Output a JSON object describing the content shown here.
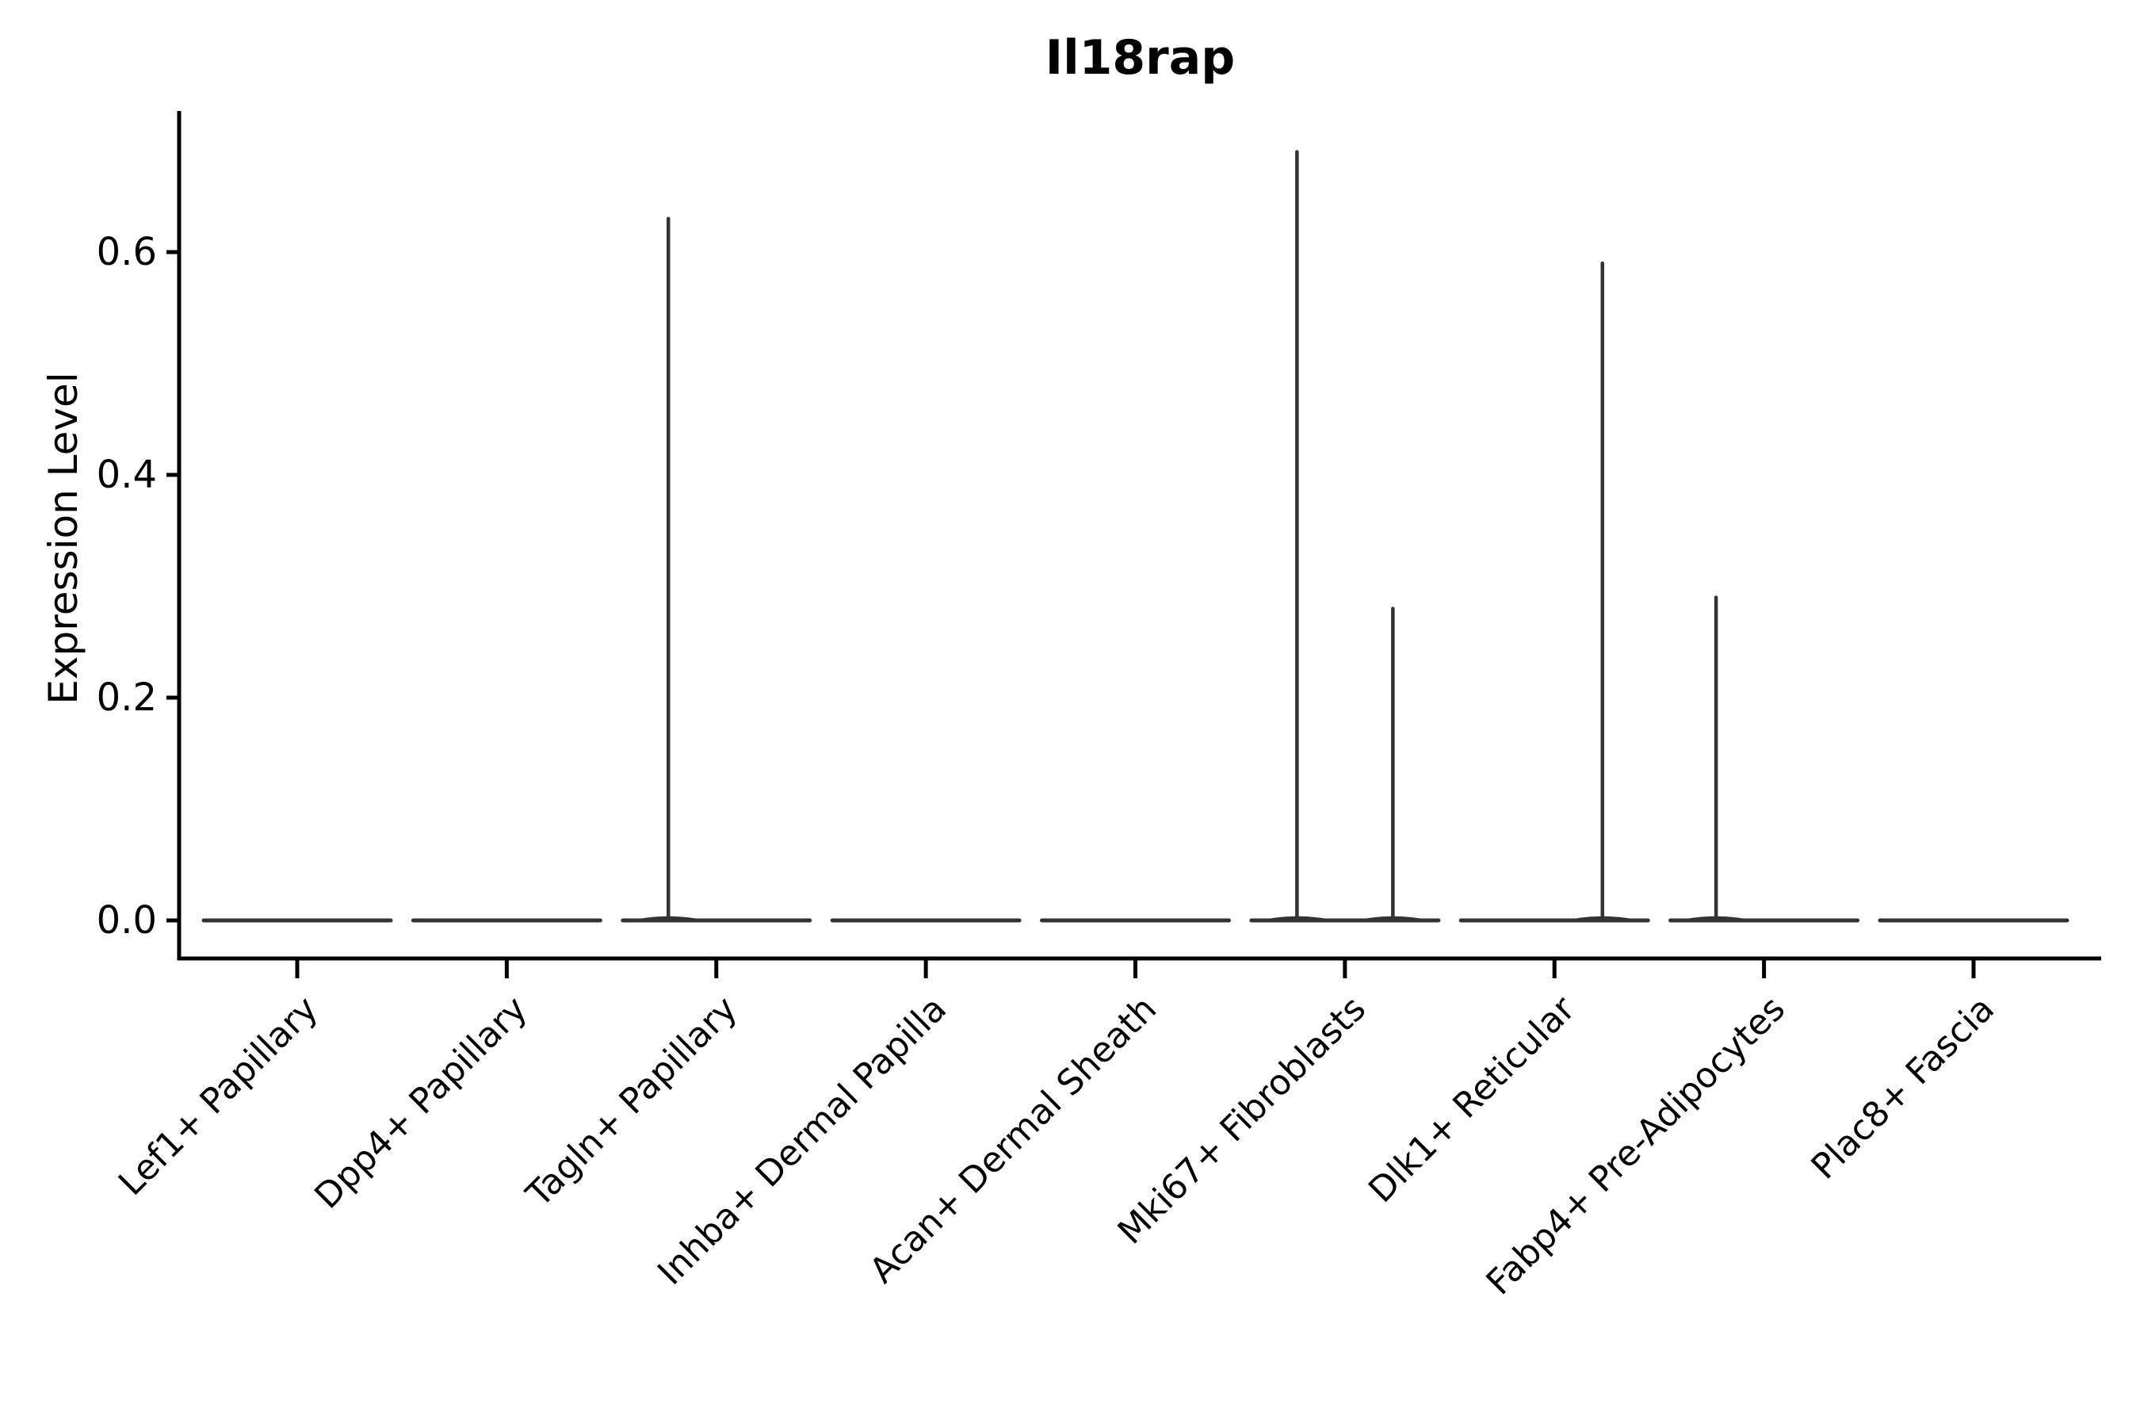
{
  "title": "Il18rap",
  "y_axis": {
    "label": "Expression Level",
    "tick_labels": [
      "0.0",
      "0.2",
      "0.4",
      "0.6"
    ]
  },
  "x_axis": {
    "categories": [
      "Lef1+ Papillary",
      "Dpp4+ Papillary",
      "Tagln+ Papillary",
      "Inhba+ Dermal Papilla",
      "Acan+ Dermal Sheath",
      "Mki67+ Fibroblasts",
      "Dlk1+ Reticular",
      "Fabp4+ Pre-Adipocytes",
      "Plac8+ Fascia"
    ]
  },
  "colors": {
    "violin": "#333333",
    "axis": "#000000",
    "text": "#000000",
    "background": "#ffffff"
  },
  "chart_data": {
    "type": "violin",
    "title": "Il18rap",
    "xlabel": "",
    "ylabel": "Expression Level",
    "ylim": [
      -0.03,
      0.73
    ],
    "yticks": [
      0.0,
      0.2,
      0.4,
      0.6
    ],
    "grid": false,
    "legend": "none",
    "categories": [
      "Lef1+ Papillary",
      "Dpp4+ Papillary",
      "Tagln+ Papillary",
      "Inhba+ Dermal Papilla",
      "Acan+ Dermal Sheath",
      "Mki67+ Fibroblasts",
      "Dlk1+ Reticular",
      "Fabp4+ Pre-Adipocytes",
      "Plac8+ Fascia"
    ],
    "series": [
      {
        "name": "left-subviolin",
        "max_expression": [
          0,
          0,
          0.63,
          0,
          0,
          0.69,
          0,
          0.29,
          0
        ]
      },
      {
        "name": "right-subviolin",
        "max_expression": [
          0,
          0,
          0,
          0,
          0,
          0.28,
          0.59,
          0,
          0
        ]
      }
    ],
    "baseline_expression": 0.0,
    "note_shape": "each category shows a flat density line at 0 with thin spikes up to max_expression"
  }
}
